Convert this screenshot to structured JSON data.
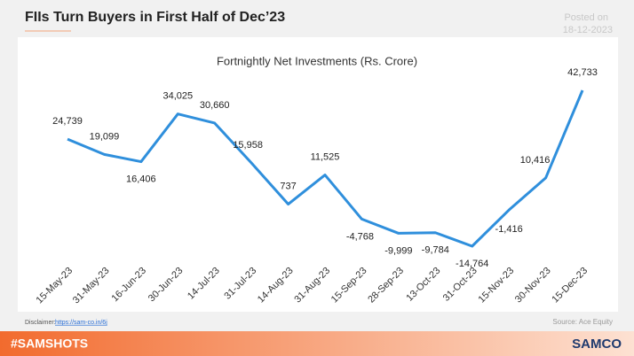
{
  "header": {
    "title": "FIIs Turn Buyers in First Half of Dec’23",
    "posted_label": "Posted on",
    "posted_date": "18-12-2023"
  },
  "chart_data": {
    "type": "line",
    "title": "Fortnightly Net Investments (Rs. Crore)",
    "categories": [
      "15-May-23",
      "31-May-23",
      "16-Jun-23",
      "30-Jun-23",
      "14-Jul-23",
      "31-Jul-23",
      "14-Aug-23",
      "31-Aug-23",
      "15-Sep-23",
      "28-Sep-23",
      "13-Oct-23",
      "31-Oct-23",
      "15-Nov-23",
      "30-Nov-23",
      "15-Dec-23"
    ],
    "series": [
      {
        "name": "Fortnightly Net Investments",
        "color": "#2f8fdc",
        "values": [
          24739,
          19099,
          16406,
          34025,
          30660,
          15958,
          737,
          11525,
          -4768,
          -9999,
          -9784,
          -14764,
          -1416,
          10416,
          42733
        ],
        "value_labels": [
          "24,739",
          "19,099",
          "16,406",
          "34,025",
          "30,660",
          "15,958",
          "737",
          "11,525",
          "-4,768",
          "-9,999",
          "-9,784",
          "-14,764",
          "-1,416",
          "10,416",
          "42,733"
        ]
      }
    ]
  },
  "footer": {
    "disclaimer": "Disclaimer:",
    "link": "https://sam-co.in/6j",
    "source": "Source:  Ace Equity",
    "hashtag": "#SAMSHOTS",
    "brand": "SAMCO"
  }
}
